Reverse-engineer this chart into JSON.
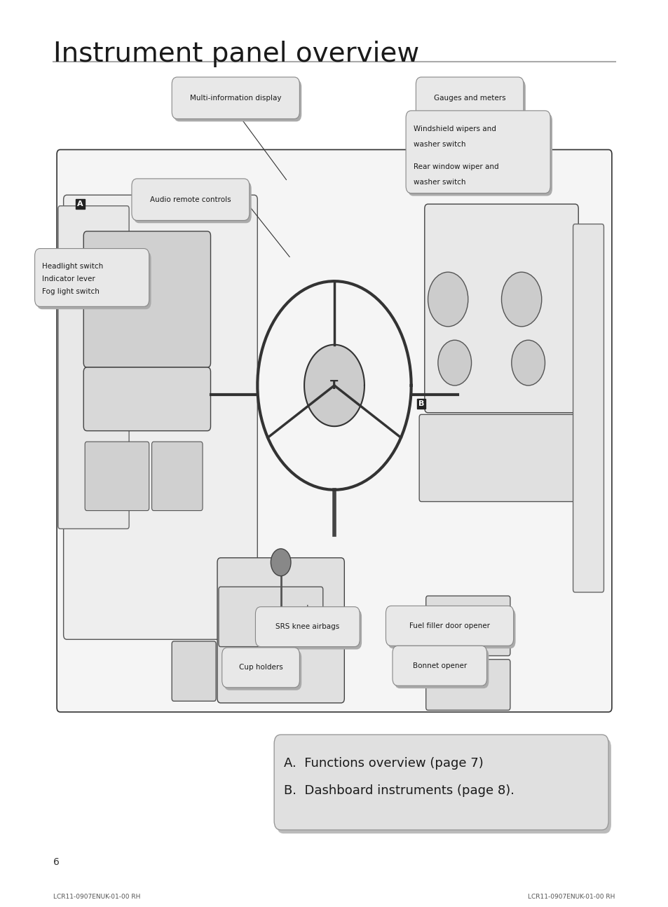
{
  "title": "Instrument panel overview",
  "background_color": "#ffffff",
  "page_number": "6",
  "footer_text": "LCR11-0907ENUK-01-00 RH",
  "title_line_color": "#aaaaaa",
  "info_box_line1": "A.  Functions overview (page 7)",
  "info_box_line2": "B.  Dashboard instruments (page 8)."
}
